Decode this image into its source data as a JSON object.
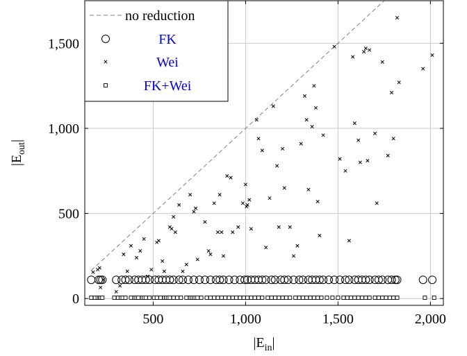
{
  "chart_data": {
    "type": "scatter",
    "xlabel_main": "|E",
    "xlabel_sub": "in",
    "xlabel_end": "|",
    "ylabel_main": "|E",
    "ylabel_sub": "out",
    "ylabel_end": "|",
    "xlim": [
      130,
      2070
    ],
    "ylim": [
      -40,
      1750
    ],
    "xticks": [
      500,
      1000,
      1500,
      2000
    ],
    "xtick_labels": [
      "500",
      "1,000",
      "1,500",
      "2,000"
    ],
    "yticks": [
      0,
      500,
      1000,
      1500
    ],
    "ytick_labels": [
      "0",
      "500",
      "1,000",
      "1,500"
    ],
    "grid": true,
    "legend_position": "top-left",
    "legend": [
      {
        "label": "no reduction",
        "marker": "dashed-line",
        "color": "#808080"
      },
      {
        "label": "FK",
        "marker": "circle",
        "color": "#0000ee"
      },
      {
        "label": "Wei",
        "marker": "x",
        "color": "#0000ee"
      },
      {
        "label": "FK+Wei",
        "marker": "square",
        "color": "#0000ee"
      }
    ],
    "reference_line": {
      "name": "no reduction",
      "x": [
        165,
        1900
      ],
      "y": [
        165,
        1900
      ]
    },
    "series": [
      {
        "name": "FK",
        "marker": "circle",
        "y_value": 110,
        "x": [
          165,
          205,
          215,
          225,
          300,
          330,
          350,
          370,
          400,
          420,
          440,
          460,
          480,
          510,
          530,
          550,
          570,
          590,
          610,
          640,
          660,
          690,
          720,
          750,
          780,
          810,
          840,
          860,
          880,
          910,
          940,
          970,
          995,
          1010,
          1030,
          1050,
          1070,
          1090,
          1110,
          1140,
          1160,
          1190,
          1210,
          1230,
          1260,
          1290,
          1310,
          1340,
          1360,
          1380,
          1400,
          1420,
          1450,
          1480,
          1510,
          1540,
          1560,
          1590,
          1610,
          1630,
          1650,
          1670,
          1700,
          1720,
          1740,
          1770,
          1790,
          1810,
          1820,
          1960,
          2010
        ]
      },
      {
        "name": "Wei",
        "marker": "x",
        "points": [
          [
            175,
            155
          ],
          [
            200,
            170
          ],
          [
            210,
            180
          ],
          [
            215,
            65
          ],
          [
            230,
            110
          ],
          [
            300,
            40
          ],
          [
            320,
            75
          ],
          [
            340,
            260
          ],
          [
            360,
            160
          ],
          [
            380,
            310
          ],
          [
            410,
            240
          ],
          [
            430,
            280
          ],
          [
            450,
            350
          ],
          [
            470,
            130
          ],
          [
            490,
            170
          ],
          [
            520,
            330
          ],
          [
            530,
            340
          ],
          [
            550,
            220
          ],
          [
            560,
            160
          ],
          [
            590,
            420
          ],
          [
            600,
            410
          ],
          [
            610,
            480
          ],
          [
            620,
            390
          ],
          [
            640,
            550
          ],
          [
            660,
            160
          ],
          [
            680,
            200
          ],
          [
            700,
            610
          ],
          [
            720,
            510
          ],
          [
            730,
            530
          ],
          [
            740,
            230
          ],
          [
            780,
            450
          ],
          [
            800,
            280
          ],
          [
            810,
            260
          ],
          [
            830,
            560
          ],
          [
            850,
            390
          ],
          [
            860,
            610
          ],
          [
            870,
            390
          ],
          [
            880,
            250
          ],
          [
            900,
            720
          ],
          [
            920,
            710
          ],
          [
            930,
            390
          ],
          [
            960,
            420
          ],
          [
            985,
            560
          ],
          [
            1000,
            670
          ],
          [
            1005,
            540
          ],
          [
            1010,
            550
          ],
          [
            1020,
            580
          ],
          [
            1030,
            410
          ],
          [
            1060,
            1050
          ],
          [
            1070,
            940
          ],
          [
            1090,
            870
          ],
          [
            1110,
            300
          ],
          [
            1130,
            590
          ],
          [
            1150,
            1130
          ],
          [
            1170,
            780
          ],
          [
            1180,
            420
          ],
          [
            1200,
            880
          ],
          [
            1210,
            650
          ],
          [
            1240,
            420
          ],
          [
            1260,
            250
          ],
          [
            1280,
            310
          ],
          [
            1300,
            910
          ],
          [
            1320,
            1190
          ],
          [
            1330,
            1050
          ],
          [
            1340,
            640
          ],
          [
            1360,
            1010
          ],
          [
            1370,
            1250
          ],
          [
            1380,
            1120
          ],
          [
            1390,
            570
          ],
          [
            1400,
            370
          ],
          [
            1420,
            960
          ],
          [
            1480,
            1480
          ],
          [
            1510,
            820
          ],
          [
            1540,
            750
          ],
          [
            1560,
            340
          ],
          [
            1580,
            1420
          ],
          [
            1590,
            1030
          ],
          [
            1610,
            930
          ],
          [
            1620,
            800
          ],
          [
            1640,
            1450
          ],
          [
            1650,
            1470
          ],
          [
            1660,
            810
          ],
          [
            1670,
            1460
          ],
          [
            1700,
            970
          ],
          [
            1710,
            560
          ],
          [
            1740,
            1390
          ],
          [
            1770,
            840
          ],
          [
            1790,
            1210
          ],
          [
            1800,
            940
          ],
          [
            1820,
            1650
          ],
          [
            1830,
            1270
          ],
          [
            1960,
            1350
          ],
          [
            2010,
            1430
          ]
        ]
      },
      {
        "name": "FK+Wei",
        "marker": "square",
        "y_value": 5,
        "x": [
          165,
          185,
          200,
          210,
          215,
          225,
          290,
          310,
          325,
          335,
          350,
          380,
          400,
          410,
          420,
          440,
          450,
          460,
          480,
          505,
          520,
          540,
          560,
          570,
          580,
          590,
          610,
          630,
          650,
          680,
          700,
          710,
          720,
          730,
          740,
          760,
          790,
          810,
          830,
          850,
          870,
          890,
          910,
          930,
          950,
          970,
          990,
          1010,
          1030,
          1050,
          1070,
          1090,
          1120,
          1140,
          1160,
          1180,
          1200,
          1220,
          1240,
          1270,
          1290,
          1310,
          1330,
          1350,
          1370,
          1390,
          1410,
          1440,
          1470,
          1500,
          1530,
          1550,
          1570,
          1590,
          1610,
          1630,
          1650,
          1670,
          1700,
          1720,
          1740,
          1760,
          1780,
          1800,
          1820,
          1970,
          2020
        ]
      }
    ]
  }
}
